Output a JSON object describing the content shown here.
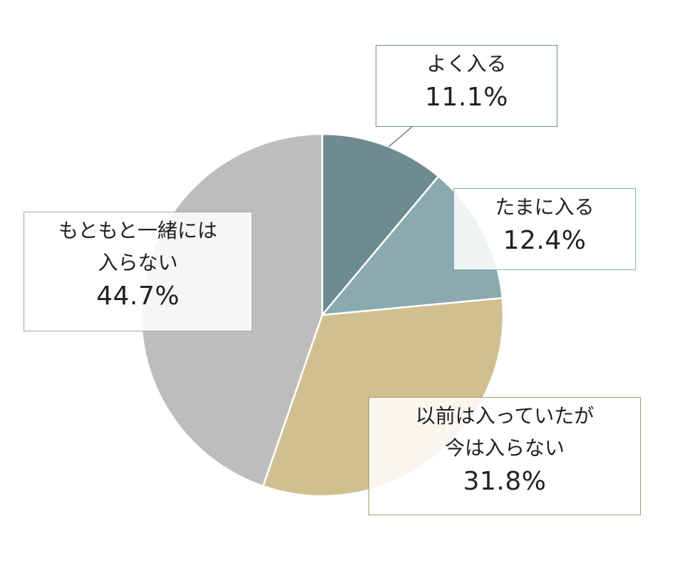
{
  "chart_data": {
    "type": "pie",
    "start_angle": "12 o'clock, clockwise",
    "slices": [
      {
        "label_lines": [
          "よく入る"
        ],
        "value": 11.1,
        "value_label": "11.1%",
        "color": "#6e8b8f"
      },
      {
        "label_lines": [
          "たまに入る"
        ],
        "value": 12.4,
        "value_label": "12.4%",
        "color": "#8aaab0"
      },
      {
        "label_lines": [
          "以前は入っていたが",
          "今は入らない"
        ],
        "value": 31.8,
        "value_label": "31.8%",
        "color": "#d1c08f"
      },
      {
        "label_lines": [
          "もともと一緒には",
          "入らない"
        ],
        "value": 44.7,
        "value_label": "44.7%",
        "color": "#bdbdbd"
      }
    ]
  }
}
